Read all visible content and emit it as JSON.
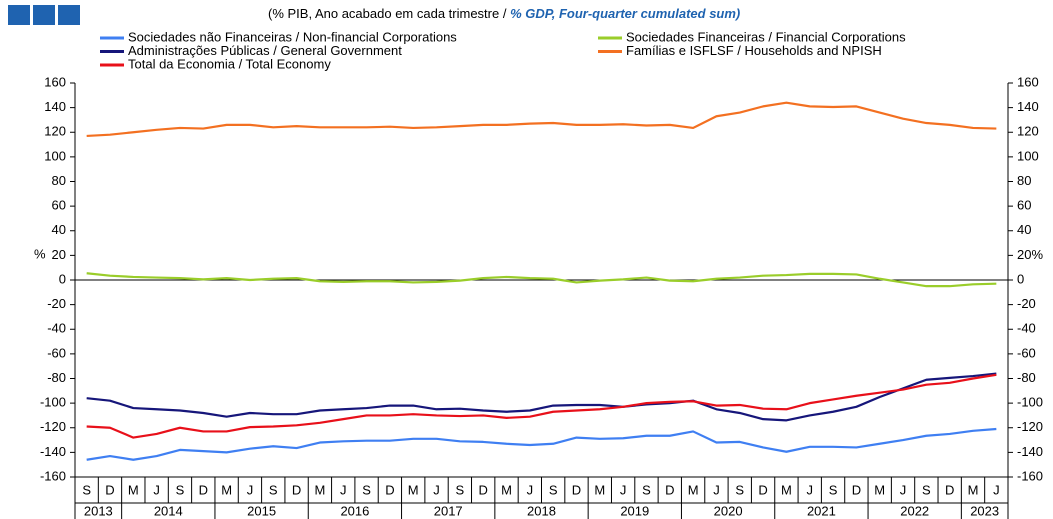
{
  "chart_data": {
    "type": "line",
    "subtitle_pt": "(% PIB, Ano acabado em cada trimestre  /",
    "subtitle_en": "% GDP, Four-quarter cumulated sum)",
    "ylabel": "%",
    "categories": [
      "S",
      "D",
      "M",
      "J",
      "S",
      "D",
      "M",
      "J",
      "S",
      "D",
      "M",
      "J",
      "S",
      "D",
      "M",
      "J",
      "S",
      "D",
      "M",
      "J",
      "S",
      "D",
      "M",
      "J",
      "S",
      "D",
      "M",
      "J",
      "S",
      "D",
      "M",
      "J",
      "S",
      "D",
      "M",
      "J",
      "S",
      "D",
      "M",
      "J"
    ],
    "years": [
      "2013",
      "2014",
      "2015",
      "2016",
      "2017",
      "2018",
      "2019",
      "2020",
      "2021",
      "2022",
      "2023"
    ],
    "ylim": [
      -160,
      160
    ],
    "yticks": [
      -160,
      -140,
      -120,
      -100,
      -80,
      -60,
      -40,
      -20,
      0,
      20,
      40,
      60,
      80,
      100,
      120,
      140,
      160
    ],
    "y2lim": [
      -160,
      160
    ],
    "y2ticks": [
      -160,
      -140,
      -120,
      -100,
      -80,
      -60,
      -40,
      -20,
      0,
      {
        "value": 20,
        "label": "20%"
      },
      40,
      60,
      80,
      100,
      120,
      140,
      160
    ],
    "grid": false,
    "series": [
      {
        "name": "Sociedades não Financeiras / Non-financial Corporations",
        "color": "#3f7ff2",
        "values": [
          -146,
          -143,
          -146,
          -143,
          -138,
          -139,
          -140,
          -137,
          -135,
          -136.5,
          -132,
          -131,
          -130.5,
          -130.5,
          -129,
          -129,
          -131,
          -131.5,
          -133,
          -134,
          -133,
          -128,
          -129,
          -128.5,
          -126.5,
          -126.5,
          -123,
          -132,
          -131.5,
          -136,
          -139.5,
          -135.5,
          -135.5,
          -136,
          -133,
          -130,
          -126.5,
          -125,
          -122.5,
          -121
        ]
      },
      {
        "name": "Sociedades Financeiras / Financial Corporations",
        "color": "#9acd2a",
        "values": [
          5.5,
          3.5,
          2.5,
          2,
          1.5,
          0.5,
          1.5,
          0,
          1,
          1.5,
          -1,
          -1.5,
          -1,
          -1,
          -2,
          -1.5,
          -0.5,
          1.5,
          2.5,
          1.5,
          1,
          -2,
          -0.5,
          0.5,
          2,
          -0.5,
          -1,
          1,
          2,
          3.5,
          4,
          5,
          5,
          4.5,
          1,
          -2,
          -5,
          -5,
          -3.5,
          -3
        ]
      },
      {
        "name": "Administrações Públicas / General Government",
        "color": "#16167a",
        "values": [
          -96,
          -98,
          -104,
          -105,
          -106,
          -108,
          -111,
          -108,
          -109,
          -109,
          -106,
          -105,
          -104,
          -102,
          -102,
          -105,
          -104.5,
          -106,
          -107,
          -106,
          -102,
          -101.5,
          -101.5,
          -103,
          -101,
          -100,
          -98,
          -105,
          -108,
          -113,
          -114,
          -110,
          -107,
          -103,
          -95,
          -88,
          -81,
          -79.5,
          -78,
          -76
        ]
      },
      {
        "name": "Famílias e ISFLSF / Households and NPISH",
        "color": "#f37021",
        "values": [
          117,
          118,
          120,
          122,
          123.5,
          123,
          126,
          126,
          124,
          125,
          124,
          124,
          124,
          124.5,
          123.5,
          124,
          125,
          126,
          126,
          127,
          127.5,
          126,
          126,
          126.5,
          125.5,
          126,
          123.5,
          133,
          136,
          141,
          144,
          141,
          140.5,
          141,
          136,
          131,
          127.5,
          126,
          123.5,
          123
        ]
      },
      {
        "name": "Total da Economia / Total Economy",
        "color": "#e8101a",
        "values": [
          -119,
          -120,
          -128,
          -125,
          -120,
          -123,
          -123,
          -119.5,
          -119,
          -118,
          -116,
          -113,
          -110,
          -110,
          -109,
          -110,
          -110.5,
          -110,
          -112,
          -111,
          -107,
          -106,
          -105,
          -103,
          -100,
          -99,
          -98.5,
          -102,
          -101.5,
          -104.5,
          -105,
          -100,
          -97,
          -94,
          -91.5,
          -89,
          -85,
          -83.5,
          -80,
          -77
        ]
      }
    ]
  }
}
